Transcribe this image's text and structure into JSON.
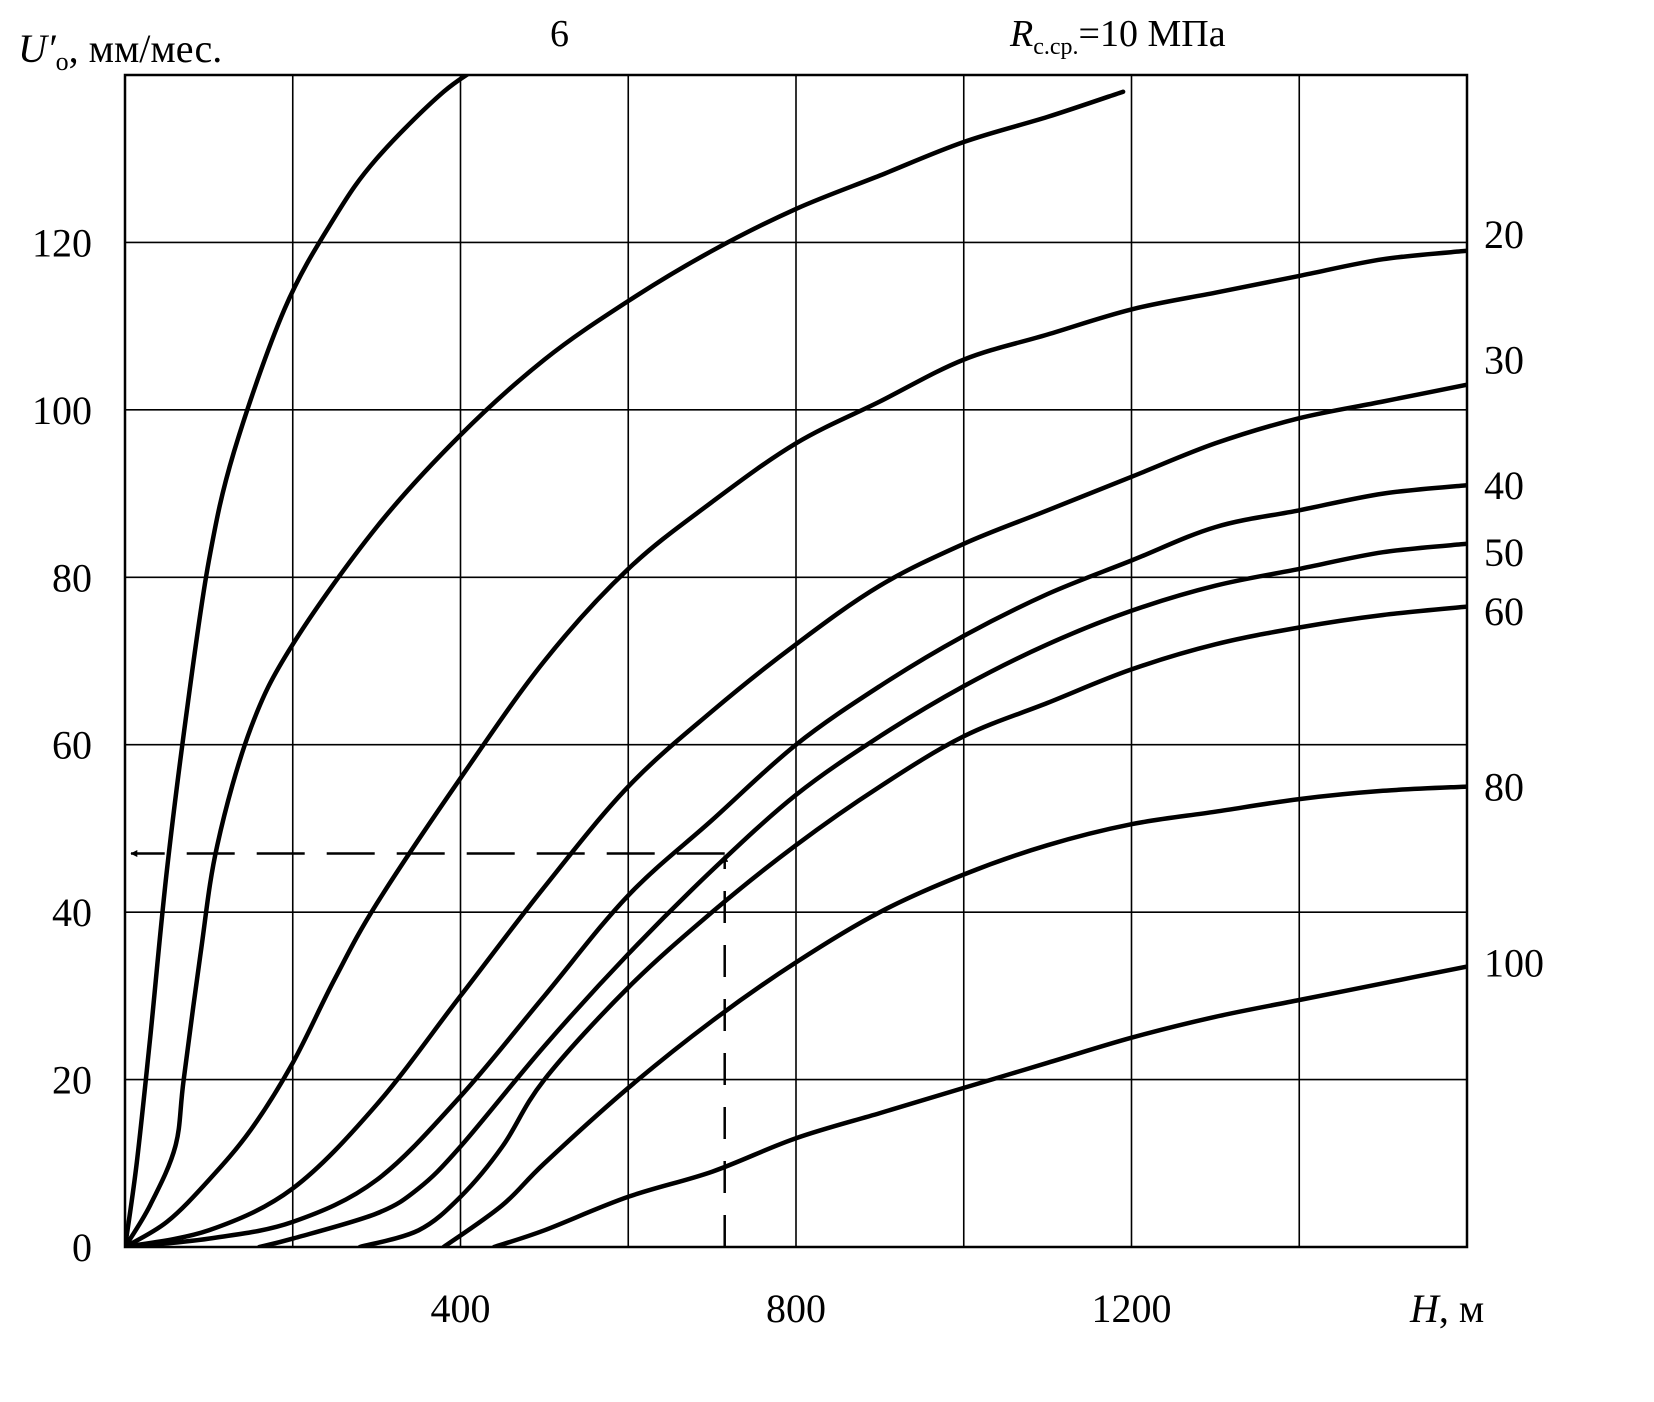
{
  "chart_data": {
    "type": "line",
    "ylabel_main": "U′",
    "ylabel_sub": "o",
    "ylabel_rest": ", мм/мес.",
    "xlabel_main": "H",
    "xlabel_rest": ", м",
    "xlim": [
      0,
      1600
    ],
    "ylim": [
      0,
      140
    ],
    "x_ticks": [
      400,
      800,
      1200
    ],
    "x_grid": [
      200,
      400,
      600,
      800,
      1000,
      1200,
      1400
    ],
    "y_ticks": [
      0,
      20,
      40,
      60,
      80,
      100,
      120
    ],
    "y_grid": [
      20,
      40,
      60,
      80,
      100,
      120
    ],
    "grid": true,
    "top_label_6": "6",
    "top_label_10_main": "R",
    "top_label_10_sub": "с.ср.",
    "top_label_10_rest": "=10 МПа",
    "series": [
      {
        "name": "6",
        "points": [
          [
            0,
            0
          ],
          [
            14,
            10
          ],
          [
            30,
            25
          ],
          [
            50,
            45
          ],
          [
            75,
            65
          ],
          [
            100,
            82
          ],
          [
            130,
            95
          ],
          [
            190,
            112
          ],
          [
            250,
            123
          ],
          [
            300,
            130
          ],
          [
            380,
            138
          ],
          [
            440,
            142
          ]
        ]
      },
      {
        "name": "10",
        "points": [
          [
            0,
            0
          ],
          [
            30,
            5
          ],
          [
            60,
            12
          ],
          [
            70,
            20
          ],
          [
            90,
            35
          ],
          [
            110,
            48
          ],
          [
            150,
            62
          ],
          [
            200,
            72
          ],
          [
            300,
            86
          ],
          [
            400,
            97
          ],
          [
            500,
            106
          ],
          [
            600,
            113
          ],
          [
            700,
            119
          ],
          [
            800,
            124
          ],
          [
            900,
            128
          ],
          [
            1000,
            132
          ],
          [
            1100,
            135
          ],
          [
            1190,
            138
          ]
        ]
      },
      {
        "name": "20",
        "points": [
          [
            0,
            0
          ],
          [
            50,
            3
          ],
          [
            100,
            8
          ],
          [
            150,
            14
          ],
          [
            200,
            22
          ],
          [
            250,
            32
          ],
          [
            300,
            41
          ],
          [
            400,
            56
          ],
          [
            500,
            70
          ],
          [
            600,
            81
          ],
          [
            700,
            89
          ],
          [
            800,
            96
          ],
          [
            900,
            101
          ],
          [
            1000,
            106
          ],
          [
            1100,
            109
          ],
          [
            1200,
            112
          ],
          [
            1300,
            114
          ],
          [
            1400,
            116
          ],
          [
            1500,
            118
          ],
          [
            1600,
            119
          ]
        ]
      },
      {
        "name": "30",
        "points": [
          [
            0,
            0
          ],
          [
            100,
            2
          ],
          [
            200,
            7
          ],
          [
            300,
            17
          ],
          [
            400,
            30
          ],
          [
            500,
            43
          ],
          [
            600,
            55
          ],
          [
            700,
            64
          ],
          [
            800,
            72
          ],
          [
            900,
            79
          ],
          [
            1000,
            84
          ],
          [
            1100,
            88
          ],
          [
            1200,
            92
          ],
          [
            1300,
            96
          ],
          [
            1400,
            99
          ],
          [
            1500,
            101
          ],
          [
            1600,
            103
          ]
        ]
      },
      {
        "name": "40",
        "points": [
          [
            0,
            0
          ],
          [
            100,
            1
          ],
          [
            200,
            3
          ],
          [
            300,
            8
          ],
          [
            400,
            18
          ],
          [
            500,
            30
          ],
          [
            600,
            42
          ],
          [
            700,
            51
          ],
          [
            800,
            60
          ],
          [
            900,
            67
          ],
          [
            1000,
            73
          ],
          [
            1100,
            78
          ],
          [
            1200,
            82
          ],
          [
            1300,
            86
          ],
          [
            1400,
            88
          ],
          [
            1500,
            90
          ],
          [
            1600,
            91
          ]
        ]
      },
      {
        "name": "50",
        "points": [
          [
            160,
            0
          ],
          [
            200,
            1
          ],
          [
            300,
            4
          ],
          [
            350,
            7
          ],
          [
            400,
            12
          ],
          [
            500,
            24
          ],
          [
            600,
            35
          ],
          [
            700,
            45
          ],
          [
            800,
            54
          ],
          [
            900,
            61
          ],
          [
            1000,
            67
          ],
          [
            1100,
            72
          ],
          [
            1200,
            76
          ],
          [
            1300,
            79
          ],
          [
            1400,
            81
          ],
          [
            1500,
            83
          ],
          [
            1600,
            84
          ]
        ]
      },
      {
        "name": "60",
        "points": [
          [
            280,
            0
          ],
          [
            350,
            2
          ],
          [
            400,
            6
          ],
          [
            450,
            12
          ],
          [
            500,
            20
          ],
          [
            600,
            31
          ],
          [
            700,
            40
          ],
          [
            800,
            48
          ],
          [
            900,
            55
          ],
          [
            1000,
            61
          ],
          [
            1100,
            65
          ],
          [
            1200,
            69
          ],
          [
            1300,
            72
          ],
          [
            1400,
            74
          ],
          [
            1500,
            75.5
          ],
          [
            1600,
            76.5
          ]
        ]
      },
      {
        "name": "80",
        "points": [
          [
            380,
            0
          ],
          [
            450,
            5
          ],
          [
            500,
            10
          ],
          [
            600,
            19
          ],
          [
            700,
            27
          ],
          [
            800,
            34
          ],
          [
            900,
            40
          ],
          [
            1000,
            44.5
          ],
          [
            1100,
            48
          ],
          [
            1200,
            50.5
          ],
          [
            1300,
            52
          ],
          [
            1400,
            53.5
          ],
          [
            1500,
            54.5
          ],
          [
            1600,
            55
          ]
        ]
      },
      {
        "name": "100",
        "points": [
          [
            440,
            0
          ],
          [
            500,
            2
          ],
          [
            600,
            6
          ],
          [
            700,
            9
          ],
          [
            800,
            13
          ],
          [
            900,
            16
          ],
          [
            1000,
            19
          ],
          [
            1100,
            22
          ],
          [
            1200,
            25
          ],
          [
            1300,
            27.5
          ],
          [
            1400,
            29.5
          ],
          [
            1500,
            31.5
          ],
          [
            1600,
            33.5
          ]
        ]
      }
    ],
    "right_labels": [
      {
        "text": "20",
        "y": 121
      },
      {
        "text": "30",
        "y": 106
      },
      {
        "text": "40",
        "y": 91
      },
      {
        "text": "50",
        "y": 83
      },
      {
        "text": "60",
        "y": 76
      },
      {
        "text": "80",
        "y": 55
      },
      {
        "text": "100",
        "y": 34
      }
    ],
    "annotation": {
      "x": 715,
      "y": 47
    }
  }
}
